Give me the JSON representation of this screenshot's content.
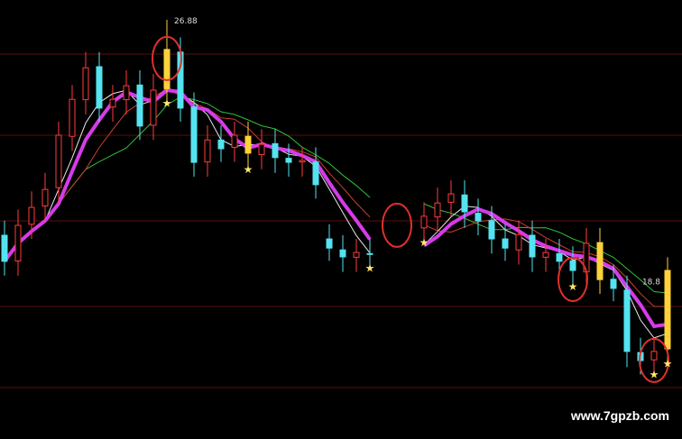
{
  "chart_data": {
    "type": "candlestick",
    "title": "",
    "xlabel": "",
    "ylabel": "",
    "ylim": [
      15.44,
      27.42
    ],
    "grid": true,
    "open": [
      21.0,
      20.3,
      21.3,
      21.8,
      22.3,
      23.7,
      24.7,
      25.6,
      24.5,
      24.7,
      25.1,
      24.0,
      25.0,
      26.0,
      24.5,
      23.0,
      23.6,
      23.4,
      23.7,
      23.2,
      23.5,
      23.1,
      23.0,
      23.0,
      20.9,
      20.6,
      20.4,
      20.5,
      null,
      null,
      null,
      21.2,
      21.5,
      21.9,
      22.1,
      21.6,
      21.4,
      20.9,
      20.6,
      21.0,
      20.4,
      20.5,
      20.3,
      20.0,
      20.8,
      19.8,
      19.5,
      17.8,
      17.6,
      17.9
    ],
    "close": [
      20.29,
      21.27,
      21.76,
      22.25,
      23.73,
      24.71,
      25.57,
      24.47,
      24.71,
      25.08,
      23.98,
      24.96,
      26.07,
      24.47,
      22.99,
      23.6,
      23.36,
      23.73,
      23.24,
      23.48,
      23.12,
      22.99,
      23.04,
      22.38,
      20.65,
      20.41,
      20.53,
      20.48,
      null,
      null,
      null,
      21.52,
      21.88,
      22.13,
      21.64,
      21.39,
      20.9,
      20.65,
      21.02,
      20.41,
      20.53,
      20.29,
      20.04,
      20.78,
      19.79,
      19.55,
      17.83,
      17.58,
      17.83,
      20.04
    ],
    "high": [
      21.4,
      21.7,
      22.2,
      22.7,
      24.1,
      25.1,
      26.0,
      26.0,
      25.1,
      25.5,
      25.5,
      25.4,
      26.88,
      26.4,
      24.9,
      24.0,
      24.0,
      24.1,
      24.1,
      23.9,
      23.9,
      23.5,
      23.4,
      23.4,
      21.3,
      21.0,
      20.9,
      20.9,
      null,
      null,
      null,
      21.9,
      22.3,
      22.5,
      22.5,
      22.0,
      21.8,
      21.3,
      21.4,
      21.4,
      20.9,
      20.9,
      20.7,
      21.2,
      21.2,
      20.2,
      19.9,
      18.2,
      18.2,
      20.4
    ],
    "low": [
      19.9,
      19.9,
      20.9,
      21.4,
      21.9,
      23.3,
      24.3,
      24.1,
      24.1,
      24.3,
      23.6,
      23.6,
      24.6,
      24.1,
      22.6,
      22.6,
      23.0,
      23.0,
      22.8,
      22.8,
      22.7,
      22.6,
      22.6,
      22.0,
      20.3,
      20.0,
      20.0,
      20.1,
      null,
      null,
      null,
      20.8,
      21.1,
      21.5,
      21.2,
      21.0,
      20.5,
      20.3,
      20.2,
      20.0,
      20.0,
      19.9,
      19.6,
      19.6,
      19.4,
      19.2,
      17.4,
      17.2,
      17.2,
      17.5
    ],
    "highlight_candles": [
      12,
      18,
      44,
      49
    ],
    "star_marks": [
      12,
      18,
      27,
      31,
      42,
      48,
      49
    ],
    "circle_marks": [
      12,
      29,
      42,
      48
    ],
    "annotations": [
      {
        "index": 12,
        "text": "26.88"
      },
      {
        "index": 49,
        "text": "18.8"
      }
    ],
    "colors": {
      "up": "#ff3b3b",
      "down": "#54e3f0",
      "highlight": "#ffd23a",
      "ma_main": "#d63be8",
      "ma_white": "#e8e8e8",
      "ma_red": "#c8402c",
      "ma_green": "#2fbf3a",
      "grid": "#5a0e0e",
      "circle": "#e0302a",
      "star": "#ffe66a"
    }
  },
  "watermark": "www.7gpzb.com"
}
